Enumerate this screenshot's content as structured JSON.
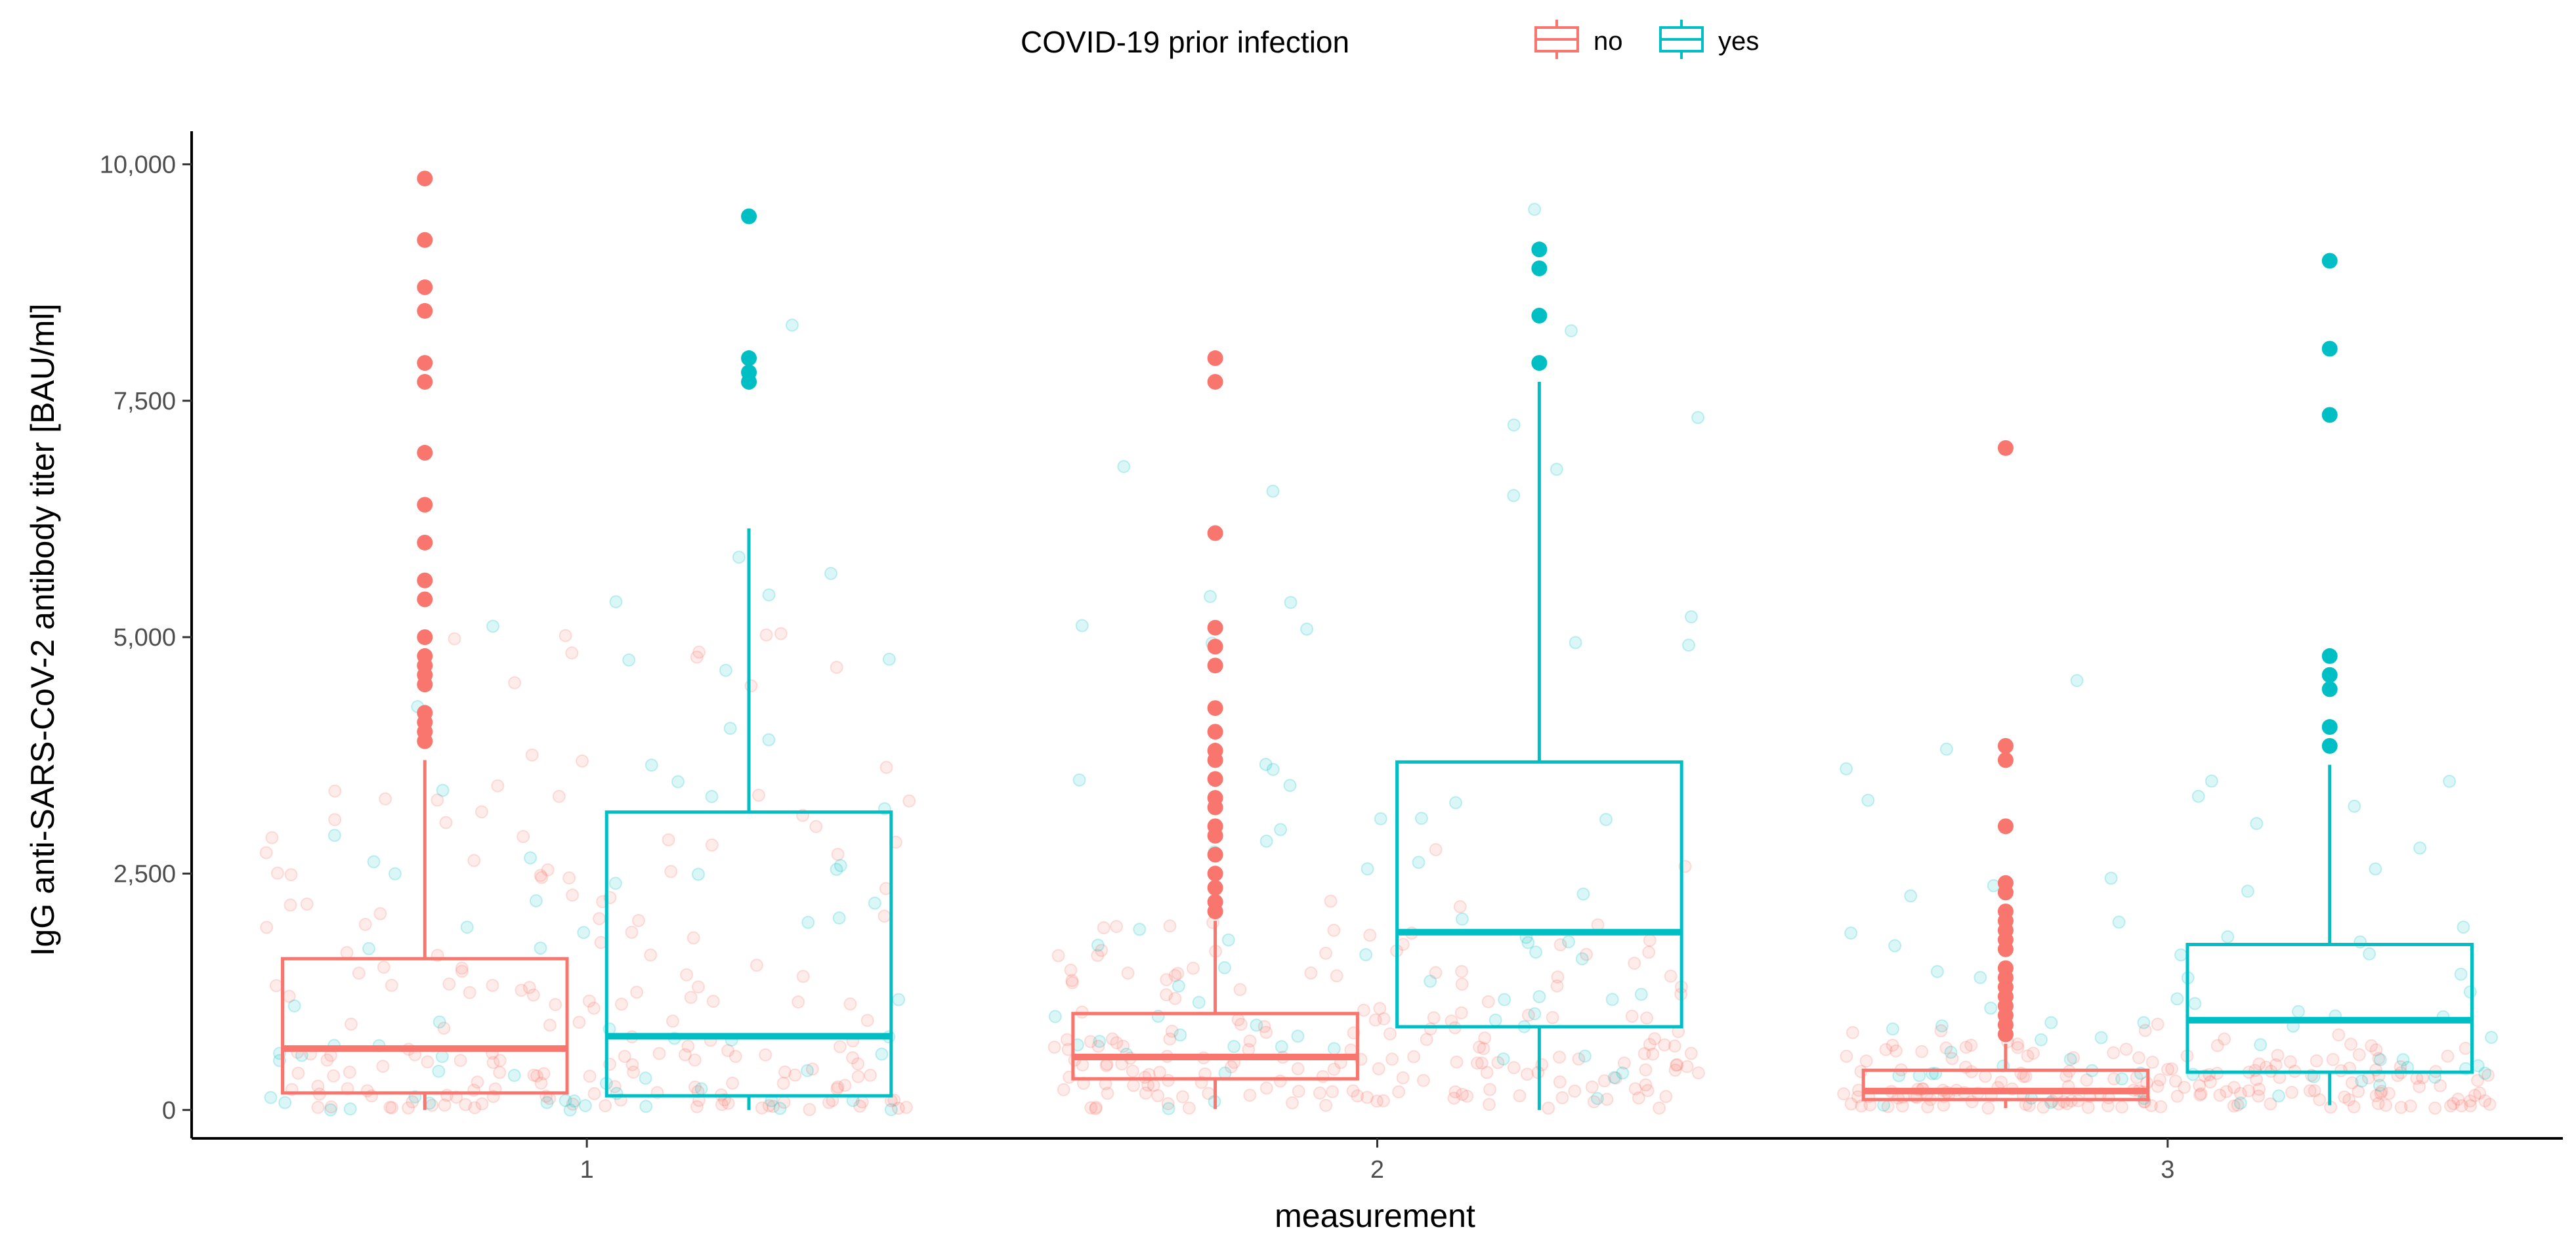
{
  "chart_data": {
    "type": "boxplot",
    "title": "",
    "xlabel": "measurement",
    "ylabel": "IgG anti-SARS-CoV-2 antibody titer [BAU/ml]",
    "categories": [
      "1",
      "2",
      "3"
    ],
    "ylim": [
      -300,
      10350
    ],
    "yticks": [
      0,
      2500,
      5000,
      7500,
      10000
    ],
    "ytick_labels": [
      "0",
      "2,500",
      "5,000",
      "7,500",
      "10,000"
    ],
    "legend": {
      "title": "COVID-19 prior infection",
      "position": "top",
      "entries": [
        "no",
        "yes"
      ]
    },
    "colors": {
      "no": "#F8766D",
      "yes": "#00BFC4"
    },
    "series": [
      {
        "name": "no",
        "boxes": [
          {
            "category": "1",
            "min": 0,
            "q1": 180,
            "median": 650,
            "q3": 1600,
            "max": 3700,
            "outliers": [
              3900,
              4000,
              4100,
              4200,
              4500,
              4600,
              4700,
              4800,
              5000,
              5400,
              5600,
              6000,
              6400,
              6950,
              7700,
              7900,
              8450,
              8700,
              9200,
              9850
            ]
          },
          {
            "category": "2",
            "min": 10,
            "q1": 330,
            "median": 560,
            "q3": 1020,
            "max": 2000,
            "outliers": [
              2100,
              2200,
              2350,
              2500,
              2700,
              2900,
              3000,
              3200,
              3300,
              3500,
              3700,
              3800,
              4000,
              4250,
              4700,
              4900,
              5100,
              6100,
              7700,
              7950
            ]
          },
          {
            "category": "3",
            "min": 20,
            "q1": 110,
            "median": 200,
            "q3": 420,
            "max": 700,
            "outliers": [
              800,
              900,
              1000,
              1100,
              1200,
              1300,
              1400,
              1500,
              1700,
              1800,
              1900,
              2000,
              2100,
              2300,
              2400,
              3000,
              3700,
              3850,
              7000
            ]
          }
        ]
      },
      {
        "name": "yes",
        "boxes": [
          {
            "category": "1",
            "min": 0,
            "q1": 150,
            "median": 780,
            "q3": 3150,
            "max": 6150,
            "outliers": [
              7700,
              7800,
              7950,
              9450
            ]
          },
          {
            "category": "2",
            "min": 0,
            "q1": 880,
            "median": 1880,
            "q3": 3680,
            "max": 7700,
            "outliers": [
              7900,
              8400,
              8900,
              9100
            ]
          },
          {
            "category": "3",
            "min": 50,
            "q1": 400,
            "median": 950,
            "q3": 1750,
            "max": 3650,
            "outliers": [
              3850,
              4050,
              4450,
              4600,
              4800,
              7350,
              8050,
              8980
            ]
          }
        ]
      }
    ]
  }
}
